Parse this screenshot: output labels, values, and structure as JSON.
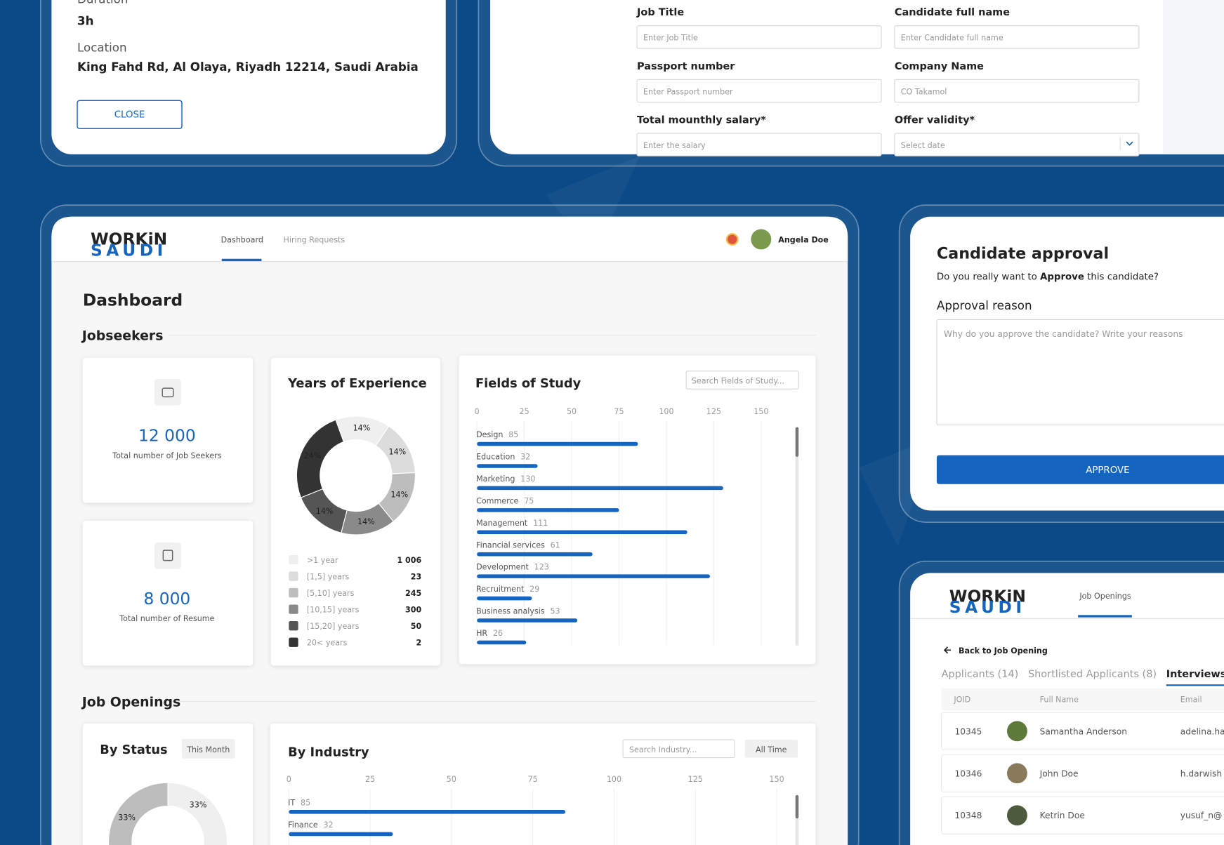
{
  "details_card": {
    "duration_label": "Duration",
    "duration": "3h",
    "location_label": "Location",
    "location": "King Fahd Rd, Al Olaya, Riyadh 12214, Saudi Arabia",
    "close_button": "CLOSE"
  },
  "offer_form": {
    "fields": [
      {
        "label": "Job Title",
        "placeholder": "Enter Job Title"
      },
      {
        "label": "Candidate full name",
        "placeholder": "Enter Candidate full name"
      },
      {
        "label": "Passport number",
        "placeholder": "Enter Passport number"
      },
      {
        "label": "Company Name",
        "placeholder": "CO Takamol"
      },
      {
        "label": "Total mounthly salary*",
        "placeholder": "Enter the salary"
      },
      {
        "label": "Offer validity*",
        "placeholder": "Select date"
      }
    ]
  },
  "dashboard": {
    "logo": {
      "top": "WORKiN",
      "bottom": "SAUDI"
    },
    "nav": [
      "Dashboard",
      "Hiring Requests"
    ],
    "user": "Angela Doe",
    "title": "Dashboard",
    "jobseekers_heading": "Jobseekers",
    "stats": [
      {
        "value": "12 000",
        "label": "Total number of Job Seekers"
      },
      {
        "value": "8 000",
        "label": "Total number of Resume"
      }
    ],
    "years_of_experience": {
      "title": "Years of Experience",
      "slices": {
        "values": [
          14,
          14,
          14,
          14,
          14,
          24
        ],
        "value_labels": [
          "14%",
          "14%",
          "14%",
          "14%",
          "14%",
          "24%"
        ],
        "colors": [
          "#efefef",
          "#dcdcdc",
          "#bdbdbd",
          "#8a8a8a",
          "#555555",
          "#333333"
        ]
      },
      "legend": [
        {
          "label": ">1 year",
          "count": "1 006"
        },
        {
          "label": "[1,5] years",
          "count": "23"
        },
        {
          "label": "[5,10] years",
          "count": "245"
        },
        {
          "label": "[10,15] years",
          "count": "300"
        },
        {
          "label": "[15,20] years",
          "count": "50"
        },
        {
          "label": "20< years",
          "count": "2"
        }
      ]
    },
    "fields_of_study": {
      "title": "Fields of Study",
      "search_placeholder": "Search Fields of Study...",
      "color": "#1565c0",
      "xlim": [
        0,
        150
      ],
      "xticks": [
        0,
        25,
        50,
        75,
        100,
        125,
        150
      ],
      "rows": [
        {
          "name": "Design",
          "value": 85
        },
        {
          "name": "Education",
          "value": 32
        },
        {
          "name": "Marketing",
          "value": 130
        },
        {
          "name": "Commerce",
          "value": 75
        },
        {
          "name": "Management",
          "value": 111
        },
        {
          "name": "Financial services",
          "value": 61
        },
        {
          "name": "Development",
          "value": 123
        },
        {
          "name": "Recruitment",
          "value": 29
        },
        {
          "name": "Business analysis",
          "value": 53
        },
        {
          "name": "HR",
          "value": 26
        }
      ]
    },
    "job_openings_heading": "Job Openings",
    "by_status": {
      "title": "By Status",
      "period_button": "This Month",
      "slices": {
        "values": [
          33,
          33
        ],
        "value_labels": [
          "33%",
          "33%"
        ],
        "colors": [
          "#efefef",
          "#bdbdbd"
        ]
      }
    },
    "by_industry": {
      "title": "By Industry",
      "search_placeholder": "Search Industry...",
      "period_button": "All Time",
      "color": "#1565c0",
      "xlim": [
        0,
        150
      ],
      "xticks": [
        0,
        25,
        50,
        75,
        100,
        125,
        150
      ],
      "rows": [
        {
          "name": "IT",
          "value": 85
        },
        {
          "name": "Finance",
          "value": 32
        }
      ]
    }
  },
  "approval_card": {
    "title": "Candidate approval",
    "question": [
      "Do you really want to ",
      "Approve",
      " this candidate?"
    ],
    "reason_label": "Approval reason",
    "reason_placeholder": "Why do you approve the candidate? Write your reasons",
    "approve_button": "APPROVE"
  },
  "job_openings_card": {
    "logo": {
      "top": "WORKiN",
      "bottom": "SAUDI"
    },
    "nav": "Job Openings",
    "back_link": "Back to Job Opening",
    "tabs": [
      "Applicants (14)",
      "Shortlisted Applicants (8)",
      "Interviews ("
    ],
    "table": {
      "columns": [
        "JOID",
        "Full Name",
        "Email"
      ],
      "rows": [
        [
          "10345",
          "Samantha Anderson",
          "adelina.ha"
        ],
        [
          "10346",
          "John Doe",
          "h.darwish"
        ],
        [
          "10348",
          "Ketrin Doe",
          "yusuf_n@"
        ]
      ]
    }
  }
}
